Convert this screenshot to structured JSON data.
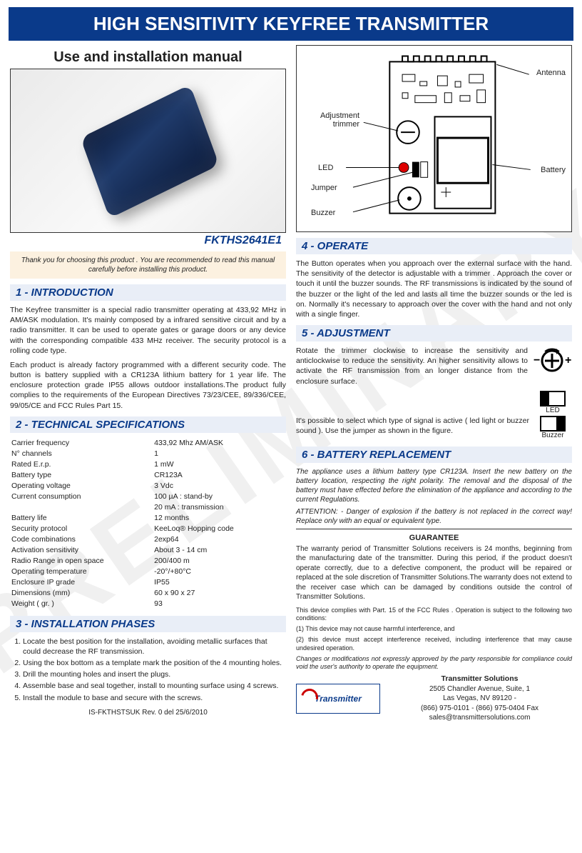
{
  "watermark": "PRELIMINARY",
  "header": {
    "title": "HIGH SENSITIVITY KEYFREE TRANSMITTER",
    "subtitle": "Use and installation manual",
    "model_code": "FKTHS2641E1"
  },
  "thank_you": "Thank you for choosing this product .\nYou are recommended to read this manual carefully  before installing this product.",
  "sections": {
    "s1": {
      "title": "1 - INTRODUCTION",
      "p1": "The Keyfree transmitter is a special radio transmitter operating at 433,92 MHz in AM/ASK modulation. It's mainly composed by a infrared sensitive circuit and by a radio transmitter. It can be used to operate gates or garage doors or any device with the corresponding compatible 433 MHz receiver. The security protocol is a rolling code type.",
      "p2": "Each product is already factory programmed with a different security code. The button is battery supplied with a CR123A lithium battery for 1 year life. The enclosure protection grade IP55 allows outdoor installations.The product fully complies to the requirements of the European Directives 73/23/CEE, 89/336/CEE, 99/05/CE and FCC Rules Part 15."
    },
    "s2": {
      "title": "2 - TECHNICAL SPECIFICATIONS",
      "rows": [
        [
          "Carrier frequency",
          "433,92 Mhz AM/ASK"
        ],
        [
          "N° channels",
          "1"
        ],
        [
          "Rated E.r.p.",
          "1 mW"
        ],
        [
          "Battery type",
          "CR123A"
        ],
        [
          "Operating voltage",
          "3 Vdc"
        ],
        [
          "Current consumption",
          "100 µA : stand-by"
        ],
        [
          "",
          "20 mA : transmission"
        ],
        [
          "Battery life",
          "12 months"
        ],
        [
          "Security protocol",
          "KeeLoq® Hopping code"
        ],
        [
          "Code combinations",
          "2exp64"
        ],
        [
          "Activation sensitivity",
          "About 3 - 14 cm"
        ],
        [
          "Radio Range in open space",
          "200/400 m"
        ],
        [
          "Operating temperature",
          "-20°/+80°C"
        ],
        [
          "Enclosure IP grade",
          "IP55"
        ],
        [
          "Dimensions (mm)",
          "60 x 90 x 27"
        ],
        [
          "Weight ( gr. )",
          "93"
        ]
      ]
    },
    "s3": {
      "title": "3 - INSTALLATION PHASES",
      "steps": [
        "Locate the best position for the installation, avoiding metallic surfaces that could decrease the RF transmission.",
        "Using the box bottom as a template mark the position of the 4 mounting holes.",
        "Drill the mounting holes and insert the plugs.",
        "Assemble base and seal together, install to mounting surface using 4 screws.",
        "Install the module to base and secure with the screws."
      ]
    },
    "s4": {
      "title": "4 - OPERATE",
      "p1": "The Button operates when you approach over the external surface with the hand. The sensitivity of the detector is adjustable with a trimmer . Approach the cover or touch it until the buzzer sounds. The RF transmissions is indicated by the sound of the buzzer or the light of the led and lasts all time the buzzer sounds or the led is on. Normally it's necessary to approach over the cover with the hand and not only with a single finger."
    },
    "s5": {
      "title": "5 - ADJUSTMENT",
      "p1": "Rotate the trimmer clockwise to increase the sensitivity and anticlockwise to reduce the sensitivity. An higher sensitivity allows to activate the RF transmission from an longer distance from the enclosure surface.",
      "p2": "It's possible to select which type of signal is active ( led light or buzzer sound ). Use the jumper as shown in the figure.",
      "led_label": "LED",
      "buzzer_label": "Buzzer"
    },
    "s6": {
      "title": "6 - BATTERY REPLACEMENT",
      "p1": "The appliance uses a lithium battery type CR123A. Insert the new battery on the battery location, respecting the right polarity. The removal and the disposal of the battery  must have effected before the elimination of the appliance and according to the current Regulations.",
      "p2": "ATTENTION: - Danger of explosion if the battery is not replaced in the correct way! Replace only with an equal or equivalent type."
    },
    "guarantee": {
      "title": "GUARANTEE",
      "p1": "The warranty period of Transmitter Solutions receivers is 24 months, beginning from the manufacturing date of the transmitter. During this period, if the product doesn't operate correctly, due to a defective component, the product will be repaired or replaced at the sole discretion of Transmitter Solutions.The warranty does not extend to the receiver case which can be damaged by conditions outside the control of Transmitter Solutions.",
      "fcc1": "This device complies with Part. 15 of the FCC Rules . Operation is subject to the following two conditions:",
      "fcc2": "(1) This device may not cause harmful interference, and",
      "fcc3": "(2) this device must accept interference received, including interference that may cause undesired operation.",
      "fcc4": "Changes or modifications not expressly approved by the party responsible for compliance could void the user's authority to operate the equipment."
    }
  },
  "pcb_labels": {
    "antenna": "Antenna",
    "adj": "Adjustment trimmer",
    "led": "LED",
    "jumper": "Jumper",
    "buzzer": "Buzzer",
    "battery": "Battery"
  },
  "revision": "IS-FKTHSTSUK Rev. 0 del 25/6/2010",
  "contact": {
    "company": "Transmitter Solutions",
    "addr1": "2505 Chandler Avenue, Suite, 1",
    "addr2": "Las Vegas, NV 89120 -",
    "phone": "(866) 975-0101 - (866) 975-0404 Fax",
    "email": "sales@transmittersolutions.com",
    "logo_text": "Transmitter"
  },
  "colors": {
    "brand_blue": "#0a3a8a",
    "section_bg": "#e9eef7",
    "note_bg": "#fcf1e0"
  }
}
